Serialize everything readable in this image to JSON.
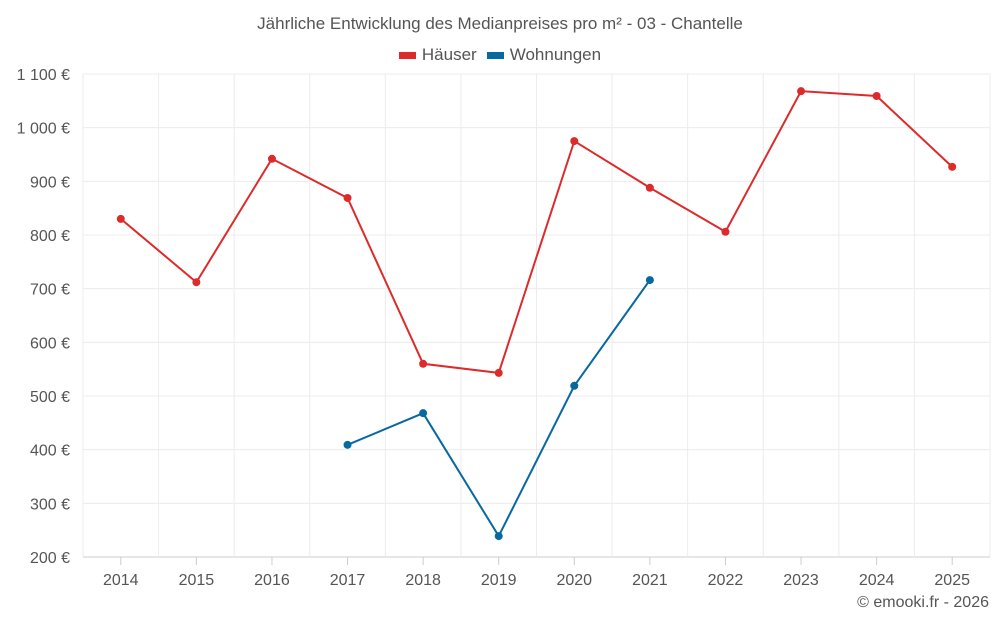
{
  "chart_data": {
    "type": "line",
    "title": "Jährliche Entwicklung des Medianpreises pro m² - 03 - Chantelle",
    "categories": [
      "2014",
      "2015",
      "2016",
      "2017",
      "2018",
      "2019",
      "2020",
      "2021",
      "2022",
      "2023",
      "2024",
      "2025"
    ],
    "series": [
      {
        "name": "Häuser",
        "color": "#dd2a2a",
        "values": [
          830,
          712,
          942,
          869,
          560,
          543,
          975,
          888,
          806,
          1068,
          1059,
          927
        ]
      },
      {
        "name": "Wohnungen",
        "color": "#0868a0",
        "values": [
          null,
          null,
          null,
          409,
          468,
          239,
          519,
          716,
          null,
          null,
          null,
          null
        ]
      }
    ],
    "ylim": [
      200,
      1100
    ],
    "yticks": [
      200,
      300,
      400,
      500,
      600,
      700,
      800,
      900,
      1000,
      1100
    ],
    "ytick_labels": [
      "200 €",
      "300 €",
      "400 €",
      "500 €",
      "600 €",
      "700 €",
      "800 €",
      "900 €",
      "1 000 €",
      "1 100 €"
    ],
    "grid": true,
    "legend": "top-center"
  },
  "credit": "© emooki.fr - 2026"
}
